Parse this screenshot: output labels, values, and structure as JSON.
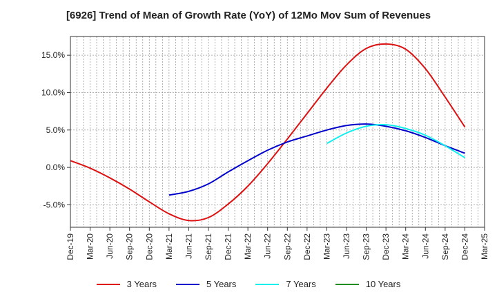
{
  "chart_data": {
    "type": "line",
    "title": "[6926]  Trend of Mean of Growth Rate (YoY) of 12Mo Mov Sum of Revenues",
    "xlabel": "",
    "ylabel": "",
    "ylim": [
      -8,
      17.5
    ],
    "yticks": [
      -5,
      0,
      5,
      10,
      15
    ],
    "ytick_labels": [
      "-5.0%",
      "0.0%",
      "5.0%",
      "10.0%",
      "15.0%"
    ],
    "categories": [
      "Dec-19",
      "Mar-20",
      "Jun-20",
      "Sep-20",
      "Dec-20",
      "Mar-21",
      "Jun-21",
      "Sep-21",
      "Dec-21",
      "Mar-22",
      "Jun-22",
      "Sep-22",
      "Dec-22",
      "Mar-23",
      "Jun-23",
      "Sep-23",
      "Dec-23",
      "Mar-24",
      "Jun-24",
      "Sep-24",
      "Dec-24",
      "Mar-25"
    ],
    "grid": true,
    "legend_position": "bottom",
    "series": [
      {
        "name": "3 Years",
        "color": "#dd1111",
        "values": [
          0.9,
          -0.1,
          -1.4,
          -2.9,
          -4.6,
          -6.2,
          -7.1,
          -6.7,
          -4.9,
          -2.5,
          0.5,
          3.8,
          7.2,
          10.6,
          13.7,
          15.9,
          16.5,
          15.8,
          13.2,
          9.4,
          5.4,
          null
        ]
      },
      {
        "name": "5 Years",
        "color": "#0000cc",
        "values": [
          null,
          null,
          null,
          null,
          null,
          -3.7,
          -3.2,
          -2.2,
          -0.6,
          0.9,
          2.3,
          3.4,
          4.2,
          5.0,
          5.6,
          5.8,
          5.5,
          4.9,
          4.0,
          2.9,
          1.9,
          null
        ]
      },
      {
        "name": "7 Years",
        "color": "#11eeee",
        "values": [
          null,
          null,
          null,
          null,
          null,
          null,
          null,
          null,
          null,
          null,
          null,
          null,
          null,
          3.2,
          4.6,
          5.5,
          5.7,
          5.2,
          4.3,
          2.9,
          1.3,
          null
        ]
      },
      {
        "name": "10 Years",
        "color": "#228b22",
        "values": [
          null,
          null,
          null,
          null,
          null,
          null,
          null,
          null,
          null,
          null,
          null,
          null,
          null,
          null,
          null,
          null,
          null,
          null,
          null,
          null,
          null,
          null
        ]
      }
    ]
  }
}
